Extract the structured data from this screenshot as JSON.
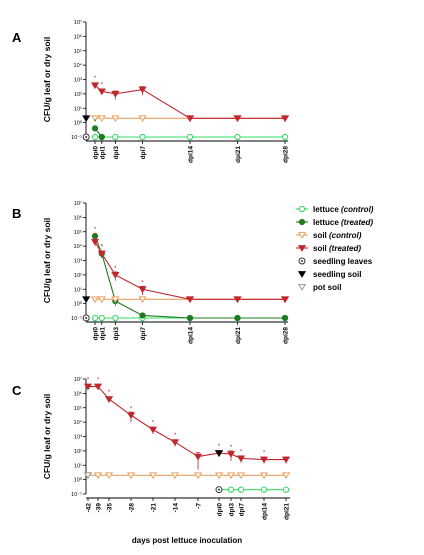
{
  "colors": {
    "lettuce_control": "#33dd66",
    "lettuce_treated": "#1e7b1e",
    "soil_control": "#e8a060",
    "soil_treated": "#c0272d",
    "seedling_leaves": "#333333",
    "seedling_soil": "#000000",
    "pot_soil": "#999999"
  },
  "legend": {
    "items": [
      {
        "key": "lettuce_control",
        "name": "lettuce",
        "qual": "(control)",
        "icon": "open-circle-icon"
      },
      {
        "key": "lettuce_treated",
        "name": "lettuce",
        "qual": "(treated)",
        "icon": "filled-circle-icon"
      },
      {
        "key": "soil_control",
        "name": "soil",
        "qual": "(control)",
        "icon": "open-triangle-icon"
      },
      {
        "key": "soil_treated",
        "name": "soil",
        "qual": "(treated)",
        "icon": "filled-triangle-icon"
      },
      {
        "key": "seedling_leaves",
        "name": "seedling leaves",
        "qual": "",
        "icon": "target-circle-icon"
      },
      {
        "key": "seedling_soil",
        "name": "seedling soil",
        "qual": "",
        "icon": "black-triangle-icon"
      },
      {
        "key": "pot_soil",
        "name": "pot soil",
        "qual": "",
        "icon": "grey-triangle-icon"
      }
    ]
  },
  "chart_data": [
    {
      "panel": "A",
      "type": "line",
      "ylabel": "CFU/g leaf or dry soil",
      "yscale": "log",
      "ylim_exp": [
        -1,
        7
      ],
      "ytick_labels": [
        "10⁻¹",
        "10⁰",
        "10¹",
        "10²",
        "10³",
        "10⁴",
        "10⁵",
        "10⁶",
        "10⁷"
      ],
      "x_categories": [
        "dpi0",
        "dpi1",
        "dpi3",
        "dpi7",
        "dpi14",
        "dpi21",
        "dpi28"
      ],
      "x_days": [
        0,
        1,
        3,
        7,
        14,
        21,
        28
      ],
      "series": [
        {
          "name": "lettuce (control)",
          "key": "lettuce_control",
          "marker": "open-circle",
          "x": [
            0,
            1,
            3,
            7,
            14,
            21,
            28
          ],
          "y": [
            0.1,
            0.1,
            0.1,
            0.1,
            0.1,
            0.1,
            0.1
          ]
        },
        {
          "name": "lettuce (treated)",
          "key": "lettuce_treated",
          "marker": "filled-circle",
          "x": [
            0,
            1
          ],
          "y": [
            0.4,
            0.1
          ]
        },
        {
          "name": "soil (control)",
          "key": "soil_control",
          "marker": "open-triangle",
          "x": [
            0,
            1,
            3,
            7,
            14,
            21,
            28
          ],
          "y": [
            2,
            2,
            2,
            2,
            2,
            2,
            2
          ]
        },
        {
          "name": "soil (treated)",
          "key": "soil_treated",
          "marker": "filled-triangle",
          "x": [
            0,
            1,
            3,
            7,
            14,
            21,
            28
          ],
          "y": [
            400,
            150,
            100,
            200,
            2,
            2,
            2
          ],
          "err": [
            150,
            60,
            60,
            120,
            0,
            0,
            0
          ]
        },
        {
          "name": "seedling leaves",
          "key": "seedling_leaves",
          "marker": "target-circle",
          "x": [
            -1.3
          ],
          "y": [
            0.1
          ]
        },
        {
          "name": "seedling soil",
          "key": "seedling_soil",
          "marker": "black-triangle",
          "x": [
            -1.3
          ],
          "y": [
            2
          ]
        }
      ],
      "annotations": [
        {
          "x": 0,
          "y": 400,
          "text": "*",
          "key": "soil_treated"
        },
        {
          "x": 1,
          "y": 150,
          "text": "*",
          "key": "soil_treated"
        },
        {
          "x": 0,
          "y": 0.4,
          "text": "*",
          "key": "lettuce_treated"
        }
      ]
    },
    {
      "panel": "B",
      "type": "line",
      "ylabel": "CFU/g leaf or dry soil",
      "yscale": "log",
      "ylim_exp": [
        -1,
        7
      ],
      "ytick_labels": [
        "10⁻¹",
        "10⁰",
        "10¹",
        "10²",
        "10³",
        "10⁴",
        "10⁵",
        "10⁶",
        "10⁷"
      ],
      "x_categories": [
        "dpi0",
        "dpi1",
        "dpi3",
        "dpi7",
        "dpi14",
        "dpi21",
        "dpi28"
      ],
      "x_days": [
        0,
        1,
        3,
        7,
        14,
        21,
        28
      ],
      "series": [
        {
          "name": "lettuce (control)",
          "key": "lettuce_control",
          "marker": "open-circle",
          "x": [
            0,
            1,
            3,
            7,
            14,
            21,
            28
          ],
          "y": [
            0.1,
            0.1,
            0.1,
            0.1,
            0.1,
            0.1,
            0.1
          ]
        },
        {
          "name": "lettuce (treated)",
          "key": "lettuce_treated",
          "marker": "filled-circle",
          "x": [
            0,
            1,
            3,
            7,
            14,
            21,
            28
          ],
          "y": [
            50000,
            3000,
            1.5,
            0.15,
            0.1,
            0.1,
            0.1
          ],
          "err": [
            20000,
            1500,
            0.8,
            0,
            0,
            0,
            0
          ]
        },
        {
          "name": "soil (control)",
          "key": "soil_control",
          "marker": "open-triangle",
          "x": [
            0,
            1,
            3,
            7,
            14,
            21,
            28
          ],
          "y": [
            2,
            2,
            2,
            2,
            2,
            2,
            2
          ]
        },
        {
          "name": "soil (treated)",
          "key": "soil_treated",
          "marker": "filled-triangle",
          "x": [
            0,
            1,
            3,
            7,
            14,
            21,
            28
          ],
          "y": [
            20000,
            3000,
            100,
            10,
            2,
            2,
            2
          ],
          "err": [
            10000,
            1500,
            60,
            6,
            0,
            0,
            0
          ]
        },
        {
          "name": "seedling leaves",
          "key": "seedling_leaves",
          "marker": "target-circle",
          "x": [
            -1.3
          ],
          "y": [
            0.1
          ]
        },
        {
          "name": "seedling soil",
          "key": "seedling_soil",
          "marker": "black-triangle",
          "x": [
            -1.3
          ],
          "y": [
            2
          ]
        }
      ],
      "annotations": [
        {
          "x": 0,
          "y": 50000,
          "text": "*",
          "key": "lettuce_treated"
        },
        {
          "x": 0,
          "y": 20000,
          "text": "*",
          "key": "soil_treated"
        },
        {
          "x": 1,
          "y": 3000,
          "text": "*",
          "key": "lettuce_treated"
        },
        {
          "x": 1,
          "y": 3000,
          "text": "*",
          "key": "soil_treated"
        },
        {
          "x": 3,
          "y": 100,
          "text": "*",
          "key": "soil_treated"
        },
        {
          "x": 7,
          "y": 10,
          "text": "*",
          "key": "soil_treated"
        }
      ]
    },
    {
      "panel": "C",
      "type": "line",
      "ylabel": "CFU/g leaf or dry soil",
      "xlabel": "days post lettuce inoculation",
      "yscale": "log",
      "ylim_exp": [
        -1,
        7
      ],
      "ytick_labels": [
        "10⁻¹",
        "10⁰",
        "10¹",
        "10²",
        "10³",
        "10⁴",
        "10⁵",
        "10⁶",
        "10⁷"
      ],
      "x_categories": [
        "-42",
        "-39",
        "-35",
        "-28",
        "-21",
        "-14",
        "-7",
        "dpi0",
        "dpi3",
        "dpi7",
        "dpi14",
        "dpi21"
      ],
      "series": [
        {
          "name": "soil (treated)",
          "key": "soil_treated",
          "marker": "filled-triangle",
          "x": [
            "-42",
            "-39",
            "-35",
            "-28",
            "-21",
            "-14",
            "-7",
            "dpi0",
            "dpi3",
            "dpi7",
            "dpi14",
            "dpi21"
          ],
          "y": [
            3000000,
            3000000,
            400000,
            30000,
            3000,
            400,
            40,
            70,
            60,
            30,
            25,
            25
          ],
          "err": [
            1200000,
            1200000,
            150000,
            20000,
            1500,
            200,
            35,
            30,
            40,
            15,
            12,
            12
          ]
        },
        {
          "name": "soil (control)",
          "key": "soil_control",
          "marker": "open-triangle",
          "x": [
            "-42",
            "-39",
            "-35",
            "-28",
            "-21",
            "-14",
            "-7",
            "dpi0",
            "dpi3",
            "dpi7",
            "dpi14",
            "dpi21"
          ],
          "y": [
            2,
            2,
            2,
            2,
            2,
            2,
            2,
            2,
            2,
            2,
            2,
            2
          ]
        },
        {
          "name": "lettuce (control)",
          "key": "lettuce_control",
          "marker": "open-circle",
          "x": [
            "dpi0",
            "dpi3",
            "dpi7",
            "dpi14",
            "dpi21"
          ],
          "y": [
            0.2,
            0.2,
            0.2,
            0.2,
            0.2
          ]
        },
        {
          "name": "lettuce (treated)",
          "key": "lettuce_treated",
          "marker": "filled-circle",
          "x": [
            "dpi0"
          ],
          "y": [
            0.2
          ]
        },
        {
          "name": "pot soil",
          "key": "pot_soil",
          "marker": "grey-triangle",
          "x": [
            "-42"
          ],
          "y": [
            2
          ]
        },
        {
          "name": "seedling leaves",
          "key": "seedling_leaves",
          "marker": "target-circle",
          "x": [
            "dpi0"
          ],
          "y": [
            0.2
          ]
        },
        {
          "name": "seedling soil",
          "key": "seedling_soil",
          "marker": "black-triangle",
          "x": [
            "dpi0"
          ],
          "y": [
            70
          ]
        }
      ],
      "annotations": [
        {
          "x": "-42",
          "y": 3000000,
          "text": "*",
          "key": "soil_treated"
        },
        {
          "x": "-39",
          "y": 3000000,
          "text": "*",
          "key": "soil_treated"
        },
        {
          "x": "-35",
          "y": 400000,
          "text": "*",
          "key": "soil_treated"
        },
        {
          "x": "-28",
          "y": 30000,
          "text": "*",
          "key": "soil_treated"
        },
        {
          "x": "-21",
          "y": 3000,
          "text": "*",
          "key": "soil_treated"
        },
        {
          "x": "-14",
          "y": 400,
          "text": "*",
          "key": "soil_treated"
        },
        {
          "x": "dpi0",
          "y": 70,
          "text": "*",
          "key": "soil_treated"
        },
        {
          "x": "dpi3",
          "y": 60,
          "text": "*",
          "key": "soil_treated"
        },
        {
          "x": "dpi7",
          "y": 30,
          "text": "*",
          "key": "soil_treated"
        },
        {
          "x": "dpi14",
          "y": 25,
          "text": "*",
          "key": "soil_treated"
        }
      ]
    }
  ]
}
